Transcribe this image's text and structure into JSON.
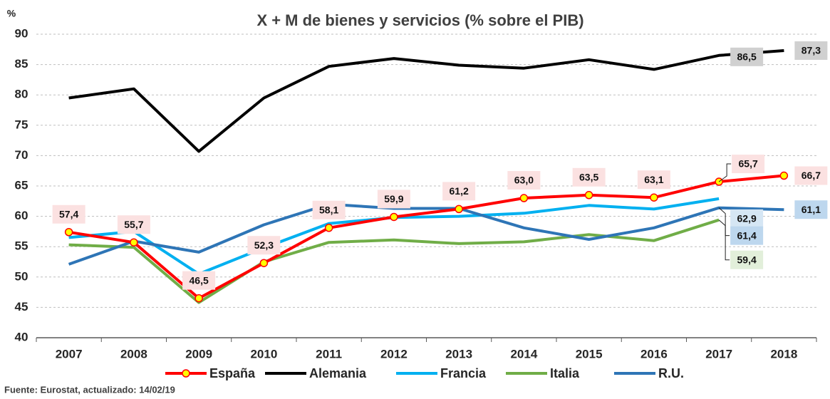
{
  "chart_data": {
    "type": "line",
    "title": "X + M de bienes y servicios (% sobre el PIB)",
    "y_unit": "%",
    "source": "Fuente: Eurostat, actualizado:  14/02/19",
    "categories": [
      "2007",
      "2008",
      "2009",
      "2010",
      "2011",
      "2012",
      "2013",
      "2014",
      "2015",
      "2016",
      "2017",
      "2018"
    ],
    "ylim": [
      40,
      90
    ],
    "yticks": [
      40,
      45,
      50,
      55,
      60,
      65,
      70,
      75,
      80,
      85,
      90
    ],
    "grid": true,
    "legend": "bottom",
    "series": [
      {
        "name": "España",
        "color": "#ff0000",
        "marker_color": "#ffff00",
        "label_bg": "#fbe1e1",
        "values": [
          57.4,
          55.7,
          46.5,
          52.3,
          58.1,
          59.9,
          61.2,
          63.0,
          63.5,
          63.1,
          65.7,
          66.7
        ],
        "value_labels": [
          "57,4",
          "55,7",
          "46,5",
          "52,3",
          "58,1",
          "59,9",
          "61,2",
          "63,0",
          "63,5",
          "63,1",
          "65,7",
          "66,7"
        ]
      },
      {
        "name": "Alemania",
        "color": "#000000",
        "label_bg": "#d0d0d0",
        "values": [
          79.5,
          81.0,
          70.7,
          79.5,
          84.7,
          86.0,
          84.9,
          84.4,
          85.8,
          84.2,
          86.5,
          87.3
        ],
        "value_labels": [
          null,
          null,
          null,
          null,
          null,
          null,
          null,
          null,
          null,
          null,
          "86,5",
          "87,3"
        ]
      },
      {
        "name": "Francia",
        "color": "#00b0f0",
        "label_bg": "#d5e6f4",
        "values": [
          56.5,
          57.5,
          50.5,
          54.8,
          58.8,
          59.8,
          60.0,
          60.5,
          61.8,
          61.2,
          62.9,
          null
        ],
        "value_labels": [
          null,
          null,
          null,
          null,
          null,
          null,
          null,
          null,
          null,
          null,
          "62,9",
          null
        ]
      },
      {
        "name": "Italia",
        "color": "#70ad47",
        "label_bg": "#e2efda",
        "values": [
          55.3,
          54.9,
          45.8,
          52.5,
          55.7,
          56.1,
          55.5,
          55.8,
          57.0,
          56.0,
          59.4,
          null
        ],
        "value_labels": [
          null,
          null,
          null,
          null,
          null,
          null,
          null,
          null,
          null,
          null,
          "59,4",
          null
        ]
      },
      {
        "name": "R.U.",
        "color": "#2e75b6",
        "label_bg": "#bdd7ee",
        "values": [
          52.1,
          55.9,
          54.1,
          58.6,
          62.0,
          61.3,
          61.3,
          58.1,
          56.2,
          58.1,
          61.4,
          61.1
        ],
        "value_labels": [
          null,
          null,
          null,
          null,
          null,
          null,
          null,
          null,
          null,
          null,
          "61,4",
          "61,1"
        ]
      }
    ]
  }
}
